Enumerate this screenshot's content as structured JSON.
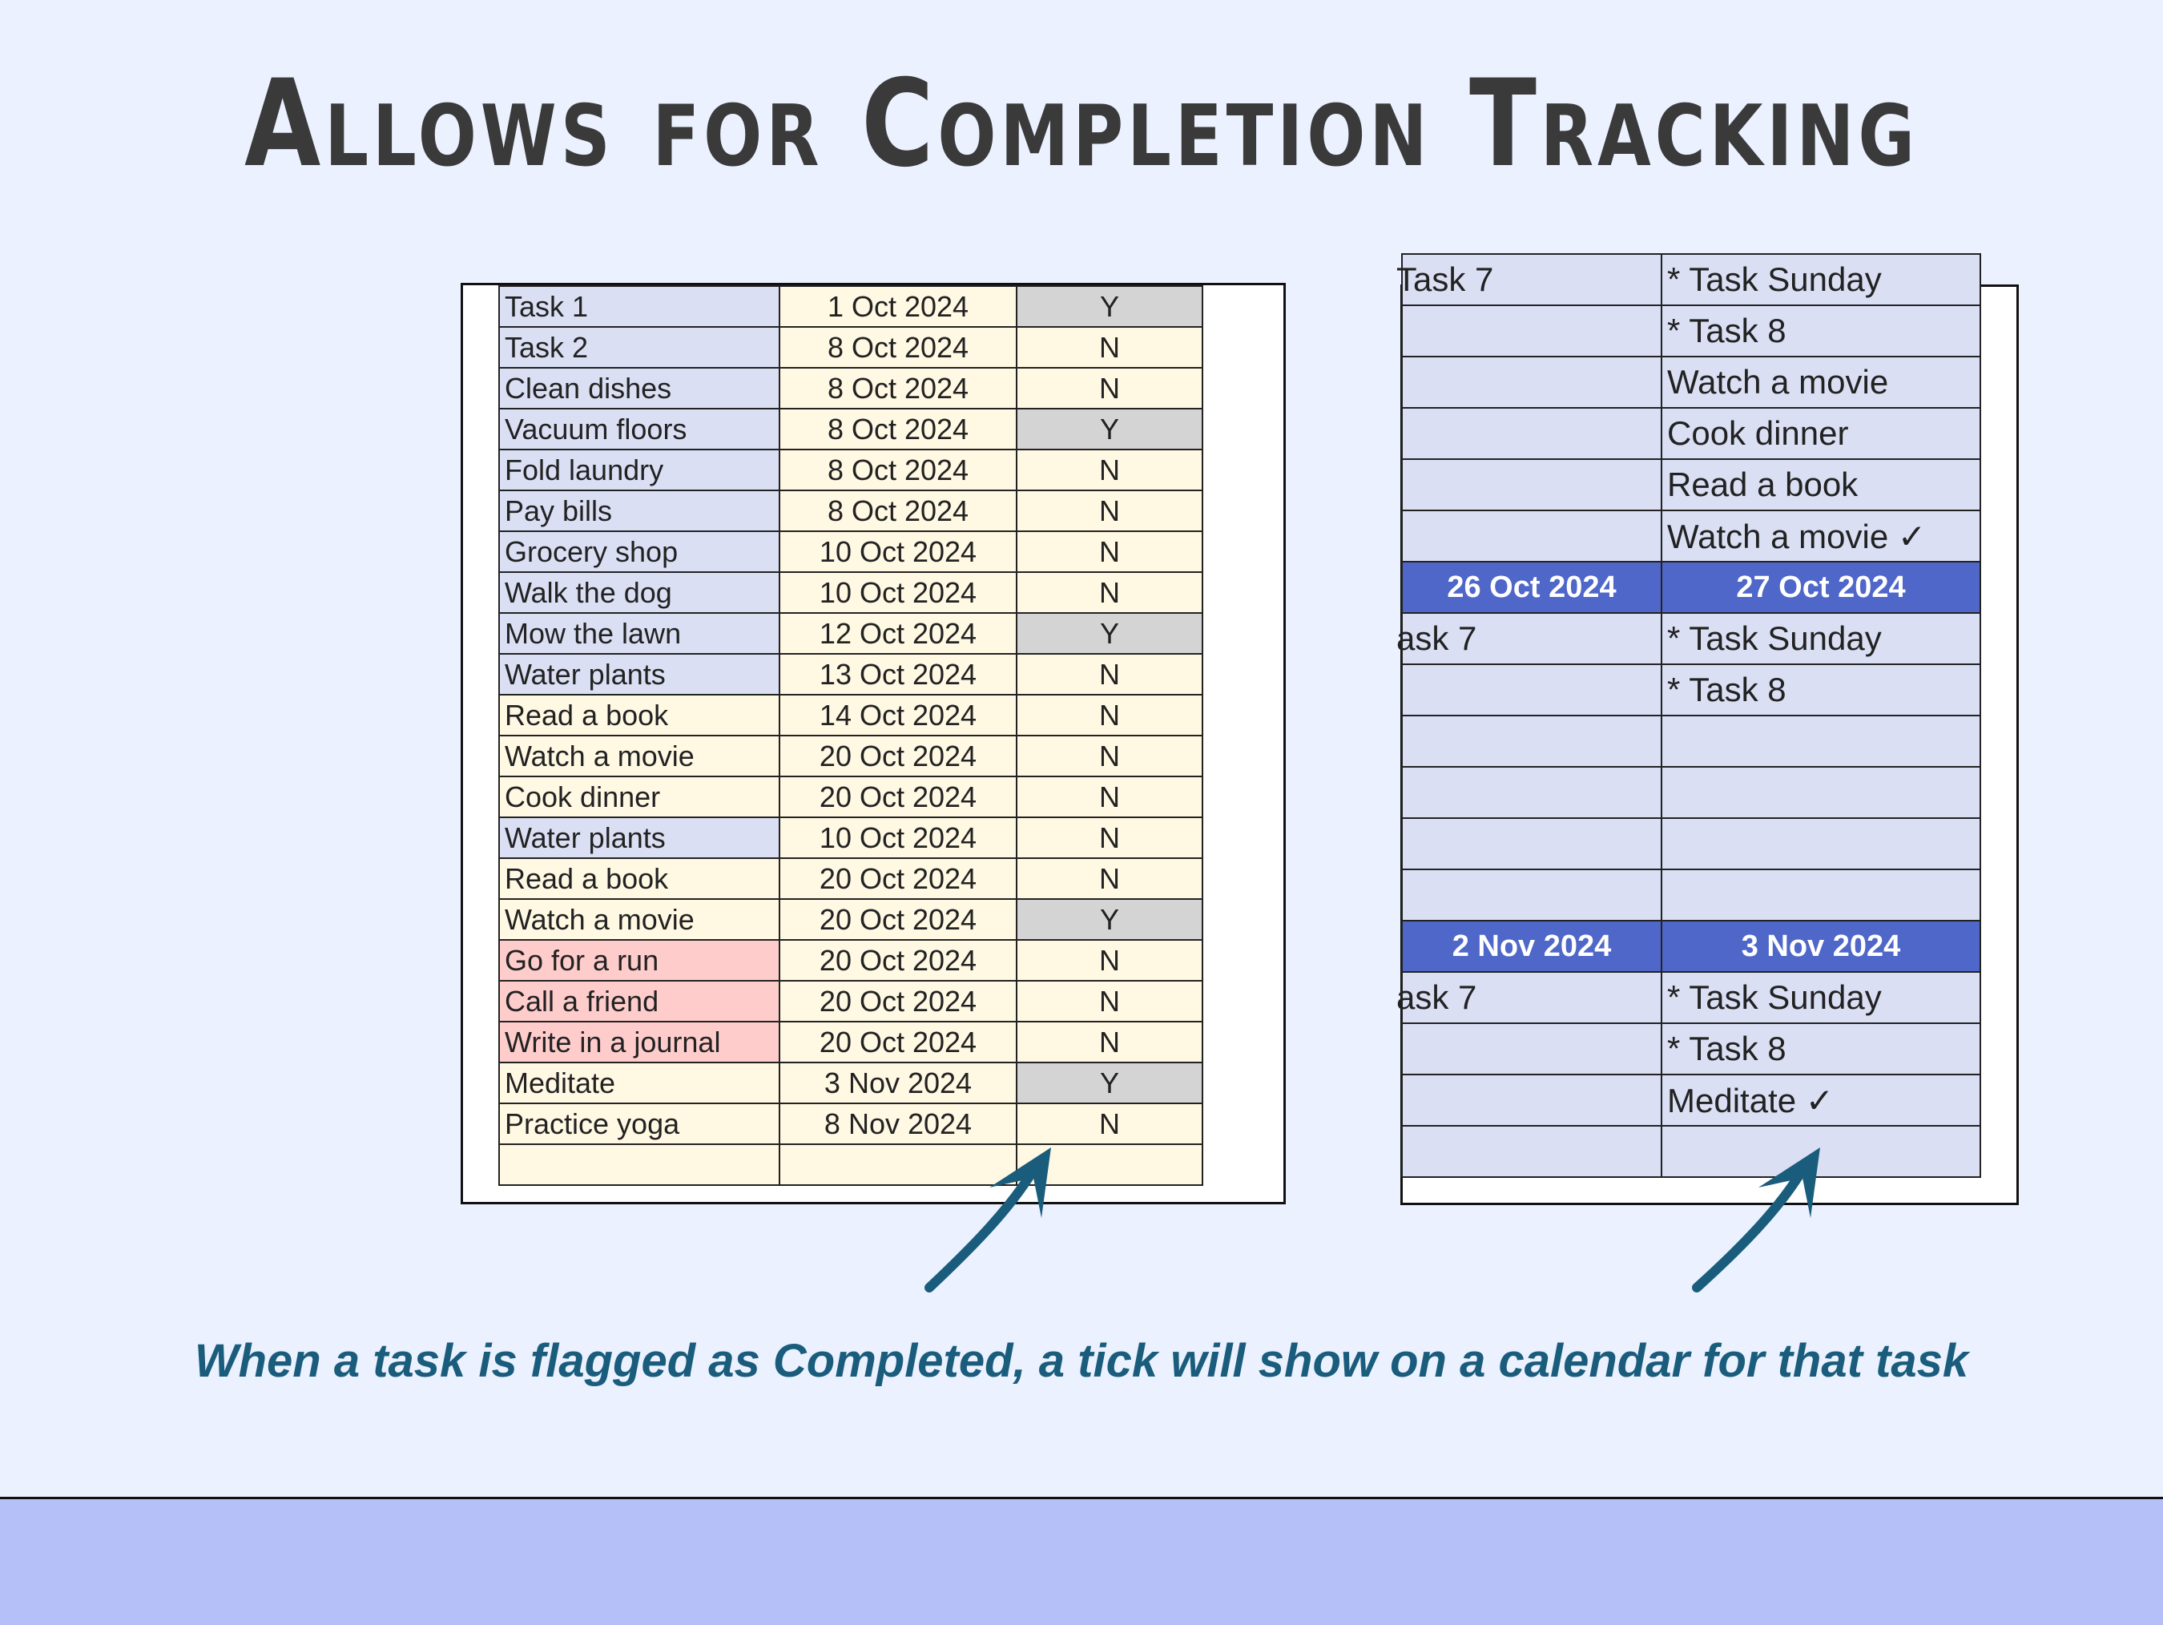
{
  "title": "Allows for Completion Tracking",
  "task_list": {
    "rows": [
      {
        "task": "Task 1",
        "date": "1 Oct 2024",
        "completed": "Y",
        "color": "lavender"
      },
      {
        "task": "Task 2",
        "date": "8 Oct 2024",
        "completed": "N",
        "color": "lavender"
      },
      {
        "task": "Clean dishes",
        "date": "8 Oct 2024",
        "completed": "N",
        "color": "lavender"
      },
      {
        "task": "Vacuum floors",
        "date": "8 Oct 2024",
        "completed": "Y",
        "color": "lavender"
      },
      {
        "task": "Fold laundry",
        "date": "8 Oct 2024",
        "completed": "N",
        "color": "lavender"
      },
      {
        "task": "Pay bills",
        "date": "8 Oct 2024",
        "completed": "N",
        "color": "lavender"
      },
      {
        "task": "Grocery shop",
        "date": "10 Oct 2024",
        "completed": "N",
        "color": "lavender"
      },
      {
        "task": "Walk the dog",
        "date": "10 Oct 2024",
        "completed": "N",
        "color": "lavender"
      },
      {
        "task": "Mow the lawn",
        "date": "12 Oct 2024",
        "completed": "Y",
        "color": "lavender"
      },
      {
        "task": "Water plants",
        "date": "13 Oct 2024",
        "completed": "N",
        "color": "lavender"
      },
      {
        "task": "Read a book",
        "date": "14 Oct 2024",
        "completed": "N",
        "color": "cream"
      },
      {
        "task": "Watch a movie",
        "date": "20 Oct 2024",
        "completed": "N",
        "color": "cream"
      },
      {
        "task": "Cook dinner",
        "date": "20 Oct 2024",
        "completed": "N",
        "color": "cream"
      },
      {
        "task": "Water plants",
        "date": "10 Oct 2024",
        "completed": "N",
        "color": "lavender"
      },
      {
        "task": "Read a book",
        "date": "20 Oct 2024",
        "completed": "N",
        "color": "cream"
      },
      {
        "task": "Watch a movie",
        "date": "20 Oct 2024",
        "completed": "Y",
        "color": "cream"
      },
      {
        "task": "Go for a run",
        "date": "20 Oct 2024",
        "completed": "N",
        "color": "pink"
      },
      {
        "task": "Call a friend",
        "date": "20 Oct 2024",
        "completed": "N",
        "color": "pink"
      },
      {
        "task": "Write in a journal",
        "date": "20 Oct 2024",
        "completed": "N",
        "color": "pink"
      },
      {
        "task": "Meditate",
        "date": "3 Nov 2024",
        "completed": "Y",
        "color": "cream"
      },
      {
        "task": "Practice yoga",
        "date": "8 Nov 2024",
        "completed": "N",
        "color": "cream"
      },
      {
        "task": "",
        "date": "",
        "completed": "",
        "color": "cream"
      }
    ]
  },
  "calendar": {
    "rows": [
      {
        "a": "Task 7",
        "b": "* Task Sunday"
      },
      {
        "a": "",
        "b": "* Task 8"
      },
      {
        "a": "",
        "b": "Watch a movie"
      },
      {
        "a": "",
        "b": "Cook dinner"
      },
      {
        "a": "",
        "b": "Read a book"
      },
      {
        "a": "",
        "b": "Watch a movie ✓"
      },
      {
        "a": "26 Oct 2024",
        "b": "27 Oct 2024",
        "header": true
      },
      {
        "a": "ask 7",
        "b": "* Task Sunday"
      },
      {
        "a": "",
        "b": "* Task 8"
      },
      {
        "a": "",
        "b": ""
      },
      {
        "a": "",
        "b": ""
      },
      {
        "a": "",
        "b": ""
      },
      {
        "a": "",
        "b": ""
      },
      {
        "a": "2 Nov 2024",
        "b": "3 Nov 2024",
        "header": true
      },
      {
        "a": "ask 7",
        "b": "* Task Sunday"
      },
      {
        "a": "",
        "b": "* Task 8"
      },
      {
        "a": "",
        "b": "Meditate ✓"
      },
      {
        "a": "",
        "b": ""
      }
    ]
  },
  "caption": "When a task is flagged as Completed, a tick will show on a calendar for that task",
  "colors": {
    "background": "#ebf1fe",
    "header": "#4f67c8",
    "arrow": "#1a5c7c",
    "band": "#b4c0f7"
  }
}
